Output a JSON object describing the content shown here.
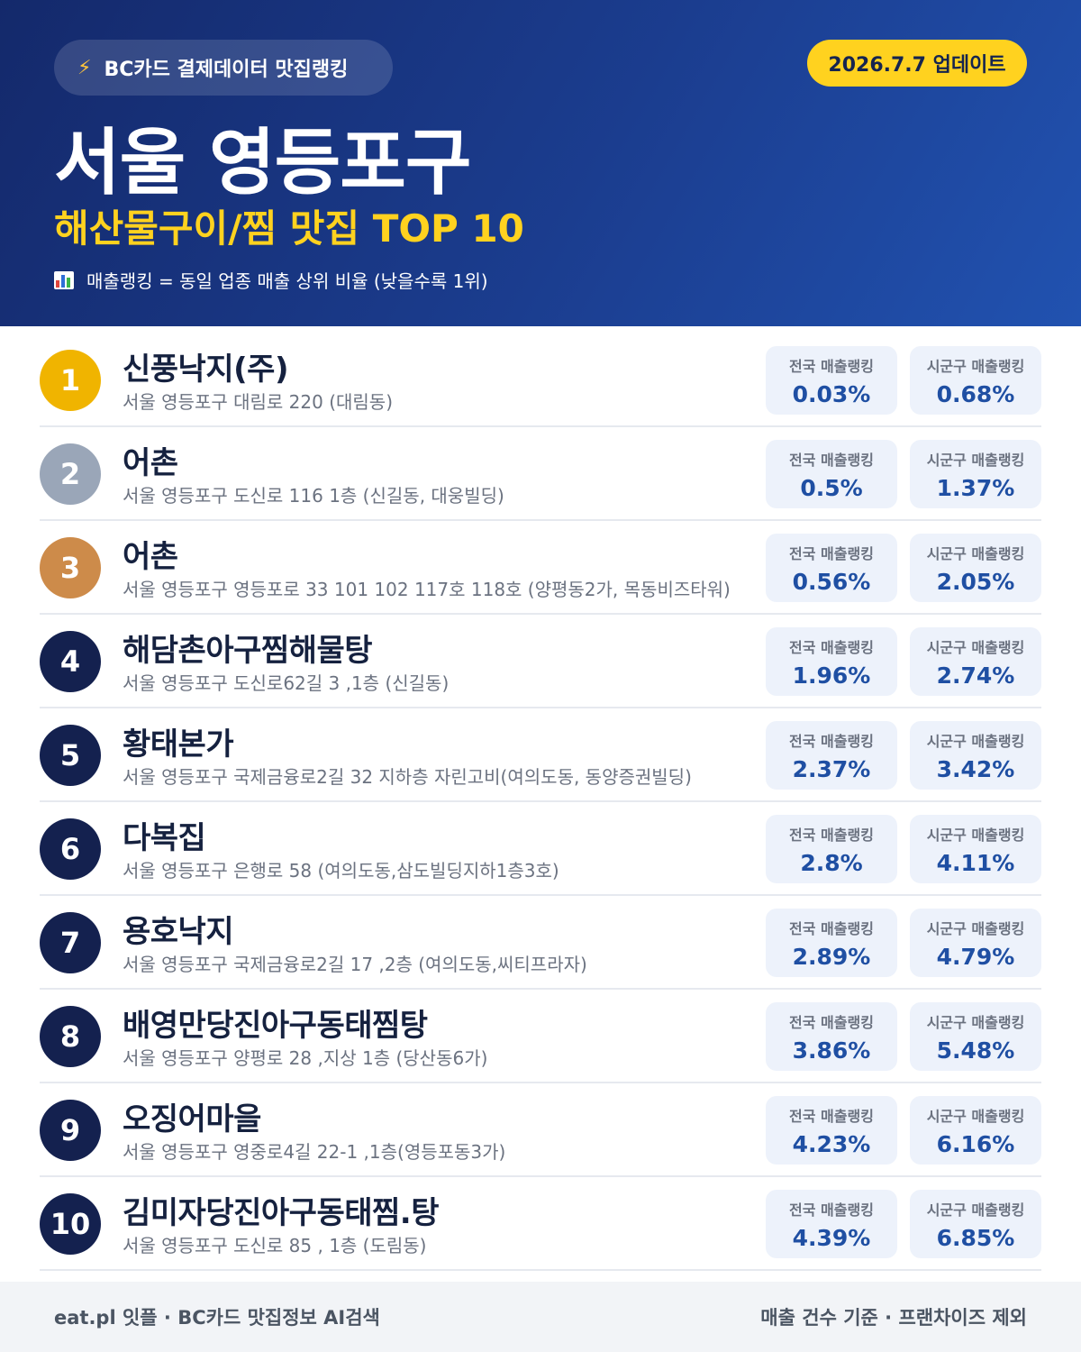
{
  "header": {
    "badge": "BC카드 결제데이터 맛집랭킹",
    "date": "2026.7.7 업데이트",
    "title": "서울 영등포구",
    "subtitle": "해산물구이/찜 맛집 TOP 10",
    "note": "매출랭킹 = 동일 업종 매출 상위 비율 (낮을수록 1위)"
  },
  "labels": {
    "national": "전국 매출랭킹",
    "local": "시군구 매출랭킹"
  },
  "colors": {
    "gold": "#f0b400",
    "silver": "#9aa6b8",
    "bronze": "#cd8b4a",
    "navy": "#14214f"
  },
  "items": [
    {
      "rank": "1",
      "name": "신풍낙지(주)",
      "address": "서울 영등포구 대림로 220 (대림동)",
      "national": "0.03%",
      "local": "0.68%"
    },
    {
      "rank": "2",
      "name": "어촌",
      "address": "서울 영등포구 도신로 116 1층 (신길동, 대웅빌딩)",
      "national": "0.5%",
      "local": "1.37%"
    },
    {
      "rank": "3",
      "name": "어촌",
      "address": "서울 영등포구 영등포로 33 101 102 117호 118호 (양평동2가, 목동비즈타워)",
      "national": "0.56%",
      "local": "2.05%"
    },
    {
      "rank": "4",
      "name": "해담촌아구찜해물탕",
      "address": "서울 영등포구 도신로62길 3 ,1층 (신길동)",
      "national": "1.96%",
      "local": "2.74%"
    },
    {
      "rank": "5",
      "name": "황태본가",
      "address": "서울 영등포구 국제금융로2길 32 지하층 자린고비(여의도동, 동양증권빌딩)",
      "national": "2.37%",
      "local": "3.42%"
    },
    {
      "rank": "6",
      "name": "다복집",
      "address": "서울 영등포구 은행로 58 (여의도동,삼도빌딩지하1층3호)",
      "national": "2.8%",
      "local": "4.11%"
    },
    {
      "rank": "7",
      "name": "용호낙지",
      "address": "서울 영등포구 국제금융로2길 17 ,2층 (여의도동,씨티프라자)",
      "national": "2.89%",
      "local": "4.79%"
    },
    {
      "rank": "8",
      "name": "배영만당진아구동태찜탕",
      "address": "서울 영등포구 양평로 28 ,지상 1층 (당산동6가)",
      "national": "3.86%",
      "local": "5.48%"
    },
    {
      "rank": "9",
      "name": "오징어마을",
      "address": "서울 영등포구 영중로4길 22-1 ,1층(영등포동3가)",
      "national": "4.23%",
      "local": "6.16%"
    },
    {
      "rank": "10",
      "name": "김미자당진아구동태찜.탕",
      "address": "서울 영등포구 도신로 85 , 1층 (도림동)",
      "national": "4.39%",
      "local": "6.85%"
    }
  ],
  "footer": {
    "left": "eat.pl 잇플 · BC카드 맛집정보 AI검색",
    "right": "매출 건수 기준 · 프랜차이즈 제외"
  }
}
